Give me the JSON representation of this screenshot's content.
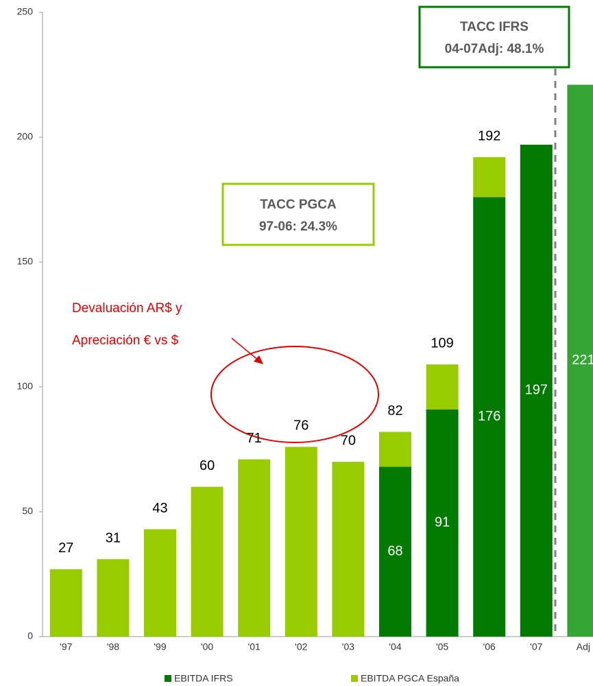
{
  "chart_data": {
    "type": "stacked_bar",
    "categories": [
      "'97",
      "'98",
      "'99",
      "'00",
      "'01",
      "'02",
      "'03",
      "'04",
      "'05",
      "'06",
      "'07",
      "Adj"
    ],
    "series": [
      {
        "name": "EBITDA IFRS",
        "color": "#007a00",
        "colors": [
          null,
          null,
          null,
          null,
          null,
          null,
          null,
          "#007a00",
          "#007a00",
          "#007a00",
          "#007a00",
          "#35a535"
        ],
        "values": [
          null,
          null,
          null,
          null,
          null,
          null,
          null,
          68,
          91,
          176,
          197,
          221
        ]
      },
      {
        "name": "EBITDA PGCA España",
        "color": "#99cc00",
        "values": [
          27,
          31,
          43,
          60,
          71,
          76,
          70,
          14,
          18,
          16,
          null,
          null
        ]
      }
    ],
    "totals": [
      27,
      31,
      43,
      60,
      71,
      76,
      70,
      82,
      109,
      192,
      null,
      null
    ],
    "ylim": [
      0,
      250
    ],
    "yticks": [
      0,
      50,
      100,
      150,
      200,
      250
    ],
    "annotations": {
      "ifrs_box": [
        "TACC IFRS",
        "04-07Adj: 48.1%"
      ],
      "pgca_box": [
        "TACC PGCA",
        "97-06: 24.3%"
      ],
      "note": [
        "Devaluación AR$ y",
        "Apreciación € vs $"
      ]
    }
  }
}
